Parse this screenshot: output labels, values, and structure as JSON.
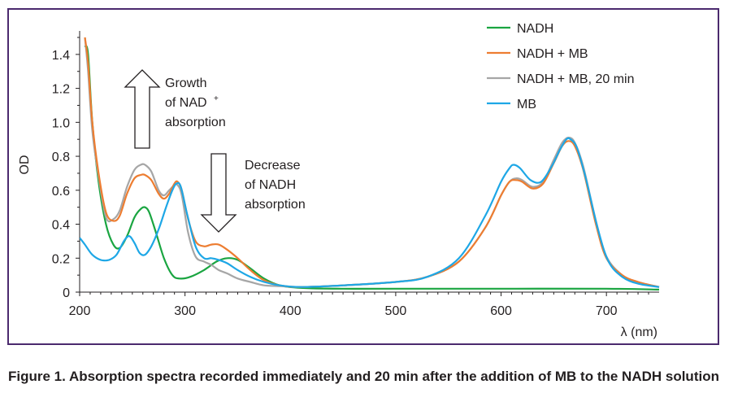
{
  "chart_data": {
    "type": "line",
    "xlabel": "λ (nm)",
    "ylabel": "OD",
    "xlim": [
      200,
      750
    ],
    "ylim": [
      0,
      1.5
    ],
    "x_ticks": [
      200,
      300,
      400,
      500,
      600,
      700
    ],
    "y_ticks": [
      0,
      0.2,
      0.4,
      0.6,
      0.8,
      1.0,
      1.2,
      1.4
    ],
    "y_tick_labels": [
      "0",
      "0.2",
      "0.4",
      "0.6",
      "0.8",
      "1.0",
      "1.2",
      "1.4"
    ],
    "legend_position": "top-right",
    "series": [
      {
        "name": "NADH",
        "color": "#1aa541",
        "points": [
          [
            205,
            1.45
          ],
          [
            208,
            1.4
          ],
          [
            212,
            1.0
          ],
          [
            218,
            0.65
          ],
          [
            225,
            0.4
          ],
          [
            232,
            0.28
          ],
          [
            238,
            0.26
          ],
          [
            245,
            0.33
          ],
          [
            252,
            0.44
          ],
          [
            258,
            0.49
          ],
          [
            262,
            0.5
          ],
          [
            266,
            0.47
          ],
          [
            272,
            0.36
          ],
          [
            280,
            0.2
          ],
          [
            288,
            0.1
          ],
          [
            295,
            0.08
          ],
          [
            305,
            0.09
          ],
          [
            318,
            0.13
          ],
          [
            330,
            0.18
          ],
          [
            340,
            0.2
          ],
          [
            350,
            0.19
          ],
          [
            362,
            0.14
          ],
          [
            375,
            0.08
          ],
          [
            390,
            0.04
          ],
          [
            410,
            0.025
          ],
          [
            450,
            0.02
          ],
          [
            500,
            0.02
          ],
          [
            600,
            0.02
          ],
          [
            700,
            0.02
          ],
          [
            750,
            0.015
          ]
        ]
      },
      {
        "name": "NADH + MB",
        "color": "#ed7d31",
        "points": [
          [
            205,
            1.5
          ],
          [
            208,
            1.35
          ],
          [
            212,
            1.0
          ],
          [
            218,
            0.7
          ],
          [
            225,
            0.47
          ],
          [
            232,
            0.42
          ],
          [
            238,
            0.45
          ],
          [
            245,
            0.58
          ],
          [
            252,
            0.67
          ],
          [
            258,
            0.69
          ],
          [
            262,
            0.69
          ],
          [
            268,
            0.66
          ],
          [
            275,
            0.58
          ],
          [
            280,
            0.55
          ],
          [
            285,
            0.58
          ],
          [
            290,
            0.64
          ],
          [
            293,
            0.65
          ],
          [
            297,
            0.6
          ],
          [
            303,
            0.43
          ],
          [
            310,
            0.3
          ],
          [
            318,
            0.27
          ],
          [
            325,
            0.28
          ],
          [
            332,
            0.28
          ],
          [
            340,
            0.25
          ],
          [
            350,
            0.2
          ],
          [
            362,
            0.13
          ],
          [
            375,
            0.07
          ],
          [
            390,
            0.04
          ],
          [
            410,
            0.03
          ],
          [
            450,
            0.04
          ],
          [
            500,
            0.06
          ],
          [
            530,
            0.09
          ],
          [
            560,
            0.18
          ],
          [
            585,
            0.38
          ],
          [
            600,
            0.57
          ],
          [
            608,
            0.65
          ],
          [
            614,
            0.66
          ],
          [
            620,
            0.65
          ],
          [
            630,
            0.61
          ],
          [
            640,
            0.64
          ],
          [
            650,
            0.76
          ],
          [
            658,
            0.86
          ],
          [
            664,
            0.89
          ],
          [
            670,
            0.86
          ],
          [
            678,
            0.72
          ],
          [
            690,
            0.4
          ],
          [
            700,
            0.2
          ],
          [
            715,
            0.1
          ],
          [
            730,
            0.06
          ],
          [
            750,
            0.03
          ]
        ]
      },
      {
        "name": "NADH + MB, 20 min",
        "color": "#a6a6a6",
        "points": [
          [
            205,
            1.5
          ],
          [
            208,
            1.3
          ],
          [
            212,
            0.95
          ],
          [
            218,
            0.68
          ],
          [
            225,
            0.44
          ],
          [
            232,
            0.43
          ],
          [
            238,
            0.48
          ],
          [
            245,
            0.62
          ],
          [
            252,
            0.72
          ],
          [
            258,
            0.75
          ],
          [
            262,
            0.75
          ],
          [
            268,
            0.71
          ],
          [
            275,
            0.6
          ],
          [
            280,
            0.57
          ],
          [
            285,
            0.6
          ],
          [
            290,
            0.63
          ],
          [
            293,
            0.63
          ],
          [
            297,
            0.57
          ],
          [
            303,
            0.35
          ],
          [
            310,
            0.21
          ],
          [
            318,
            0.18
          ],
          [
            325,
            0.16
          ],
          [
            332,
            0.13
          ],
          [
            340,
            0.11
          ],
          [
            350,
            0.08
          ],
          [
            362,
            0.06
          ],
          [
            375,
            0.04
          ],
          [
            390,
            0.035
          ],
          [
            410,
            0.03
          ],
          [
            450,
            0.04
          ],
          [
            500,
            0.06
          ],
          [
            530,
            0.09
          ],
          [
            560,
            0.18
          ],
          [
            585,
            0.38
          ],
          [
            600,
            0.57
          ],
          [
            608,
            0.65
          ],
          [
            614,
            0.67
          ],
          [
            620,
            0.66
          ],
          [
            630,
            0.62
          ],
          [
            640,
            0.65
          ],
          [
            650,
            0.78
          ],
          [
            658,
            0.88
          ],
          [
            664,
            0.91
          ],
          [
            670,
            0.88
          ],
          [
            678,
            0.74
          ],
          [
            690,
            0.42
          ],
          [
            700,
            0.21
          ],
          [
            715,
            0.1
          ],
          [
            730,
            0.06
          ],
          [
            750,
            0.03
          ]
        ]
      },
      {
        "name": "MB",
        "color": "#1ea7e6",
        "points": [
          [
            200,
            0.32
          ],
          [
            205,
            0.28
          ],
          [
            212,
            0.22
          ],
          [
            220,
            0.19
          ],
          [
            228,
            0.19
          ],
          [
            235,
            0.22
          ],
          [
            242,
            0.3
          ],
          [
            247,
            0.33
          ],
          [
            252,
            0.29
          ],
          [
            257,
            0.23
          ],
          [
            262,
            0.22
          ],
          [
            268,
            0.27
          ],
          [
            275,
            0.37
          ],
          [
            282,
            0.5
          ],
          [
            288,
            0.6
          ],
          [
            292,
            0.64
          ],
          [
            296,
            0.62
          ],
          [
            302,
            0.46
          ],
          [
            310,
            0.27
          ],
          [
            318,
            0.2
          ],
          [
            325,
            0.2
          ],
          [
            332,
            0.19
          ],
          [
            340,
            0.17
          ],
          [
            350,
            0.13
          ],
          [
            362,
            0.09
          ],
          [
            375,
            0.06
          ],
          [
            390,
            0.04
          ],
          [
            410,
            0.03
          ],
          [
            450,
            0.04
          ],
          [
            500,
            0.06
          ],
          [
            530,
            0.09
          ],
          [
            560,
            0.2
          ],
          [
            585,
            0.45
          ],
          [
            600,
            0.65
          ],
          [
            608,
            0.73
          ],
          [
            612,
            0.75
          ],
          [
            618,
            0.73
          ],
          [
            628,
            0.66
          ],
          [
            638,
            0.65
          ],
          [
            648,
            0.74
          ],
          [
            656,
            0.84
          ],
          [
            662,
            0.9
          ],
          [
            666,
            0.9
          ],
          [
            672,
            0.85
          ],
          [
            680,
            0.68
          ],
          [
            692,
            0.37
          ],
          [
            702,
            0.18
          ],
          [
            715,
            0.09
          ],
          [
            730,
            0.05
          ],
          [
            750,
            0.03
          ]
        ]
      }
    ],
    "annotations": {
      "growth": {
        "lines": [
          "Growth",
          "of NAD",
          "absorption"
        ],
        "superscript": "+",
        "direction": "up"
      },
      "decrease": {
        "lines": [
          "Decrease",
          "of NADH",
          "absorption"
        ],
        "direction": "down"
      }
    }
  },
  "caption": "Figure 1. Absorption spectra recorded immediately and 20 min after the addition of MB to the NADH solution"
}
